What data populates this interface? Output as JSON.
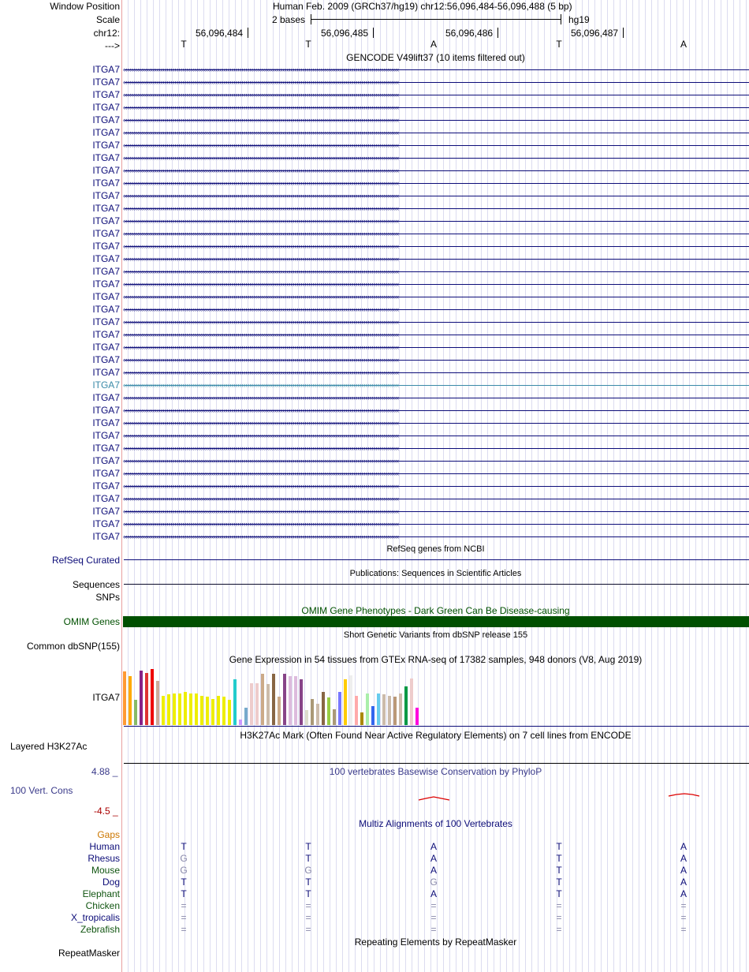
{
  "header": {
    "window_position_label": "Window Position",
    "scale_label": "Scale",
    "chrom_label": "chr12:",
    "strand_label": "--->",
    "position_title": "Human Feb. 2009 (GRCh37/hg19)   chr12:56,096,484-56,096,488 (5 bp)",
    "scale_text": "2 bases",
    "assembly": "hg19",
    "positions": [
      "56,096,484",
      "56,096,485",
      "56,096,486",
      "56,096,487"
    ],
    "bases": [
      "T",
      "T",
      "A",
      "T",
      "A"
    ]
  },
  "gencode": {
    "title": "GENCODE V49lift37 (10 items filtered out)",
    "gene_name": "ITGA7",
    "row_count": 38,
    "highlighted_row": 25,
    "color": "#0c0c78",
    "highlight_color": "#3a8aa8"
  },
  "refseq": {
    "title": "RefSeq genes from NCBI",
    "label": "RefSeq Curated",
    "color": "#0c0c78"
  },
  "publications": {
    "title": "Publications: Sequences in Scientific Articles",
    "label1": "Sequences",
    "label2": "SNPs"
  },
  "omim": {
    "title": "OMIM Gene Phenotypes - Dark Green Can Be Disease-causing",
    "label": "OMIM Genes",
    "color": "#005000"
  },
  "dbsnp": {
    "title": "Short Genetic Variants from dbSNP release 155",
    "label": "Common dbSNP(155)"
  },
  "gtex": {
    "title": "Gene Expression in 54 tissues from GTEx RNA-seq of 17382 samples, 948 donors (V8, Aug 2019)",
    "label": "ITGA7",
    "bar_levels": [
      0.94,
      0.86,
      0.44,
      0.96,
      0.92,
      0.98,
      0.78,
      0.52,
      0.54,
      0.56,
      0.56,
      0.58,
      0.56,
      0.56,
      0.52,
      0.5,
      0.46,
      0.52,
      0.5,
      0.44,
      0.8,
      0.1,
      0.3,
      0.74,
      0.74,
      0.9,
      0.72,
      0.9,
      0.5,
      0.9,
      0.86,
      0.86,
      0.8,
      0.26,
      0.46,
      0.38,
      0.58,
      0.48,
      0.28,
      0.58,
      0.8,
      0.88,
      0.52,
      0.22,
      0.56,
      0.34,
      0.56,
      0.54,
      0.52,
      0.5,
      0.56,
      0.68,
      0.82,
      0.3
    ],
    "bar_colors": [
      "#ff9933",
      "#ffaa00",
      "#88bb66",
      "#882288",
      "#dd3333",
      "#ee0000",
      "#ccaa99",
      "#eeee00",
      "#eeee00",
      "#eeee00",
      "#eeee00",
      "#eeee00",
      "#eeee00",
      "#eeee00",
      "#eeee00",
      "#eeee00",
      "#eeee00",
      "#eeee00",
      "#eeee00",
      "#eeee00",
      "#22cccc",
      "#cc99ff",
      "#77aacc",
      "#eecccc",
      "#eecccc",
      "#ccaa88",
      "#ccbbaa",
      "#886644",
      "#ccaa88",
      "#884488",
      "#ddbbdd",
      "#ddbbdd",
      "#884488",
      "#ddddcc",
      "#aa9977",
      "#ccbbaa",
      "#886644",
      "#99cc44",
      "#aa9977",
      "#7777ff",
      "#ffcc00",
      "#eeeeee",
      "#ffaaaa",
      "#aa8800",
      "#aaeeaa",
      "#3366ee",
      "#66ccee",
      "#ccbbaa",
      "#ccbbaa",
      "#bb9977",
      "#ccbbaa",
      "#009944",
      "#eecccc",
      "#ff00dd"
    ]
  },
  "h3k27ac": {
    "title": "H3K27Ac Mark (Often Found Near Active Regulatory Elements) on 7 cell lines from ENCODE",
    "label": "Layered H3K27Ac"
  },
  "conservation": {
    "title": "100 vertebrates Basewise Conservation by PhyloP",
    "label": "100 Vert. Cons",
    "max": "4.88 _",
    "min": "-4.5 _",
    "color": "#3a3a8a",
    "max_color": "#3a3a8a",
    "min_color": "#aa0000"
  },
  "multiz": {
    "title": "Multiz Alignments of 100 Vertebrates",
    "gaps_label": "Gaps",
    "gaps_color": "#cc7700",
    "species": [
      {
        "name": "Human",
        "color": "#0c0c78",
        "bases": [
          "T",
          "T",
          "A",
          "T",
          "A"
        ]
      },
      {
        "name": "Rhesus",
        "color": "#0c0c78",
        "bases": [
          "G",
          "T",
          "A",
          "T",
          "A"
        ]
      },
      {
        "name": "Mouse",
        "color": "#115511",
        "bases": [
          "G",
          "G",
          "A",
          "T",
          "A"
        ]
      },
      {
        "name": "Dog",
        "color": "#0c0c78",
        "bases": [
          "T",
          "T",
          "G",
          "T",
          "A"
        ]
      },
      {
        "name": "Elephant",
        "color": "#115511",
        "bases": [
          "T",
          "T",
          "A",
          "T",
          "A"
        ]
      },
      {
        "name": "Chicken",
        "color": "#115511",
        "bases": [
          "=",
          "=",
          "=",
          "=",
          "="
        ]
      },
      {
        "name": "X_tropicalis",
        "color": "#0c0c78",
        "bases": [
          "=",
          "=",
          "=",
          "=",
          "="
        ]
      },
      {
        "name": "Zebrafish",
        "color": "#115511",
        "bases": [
          "=",
          "=",
          "=",
          "=",
          "="
        ]
      }
    ],
    "mismatch_color": "#8888aa"
  },
  "repeatmasker": {
    "title": "Repeating Elements by RepeatMasker",
    "label": "RepeatMasker"
  }
}
